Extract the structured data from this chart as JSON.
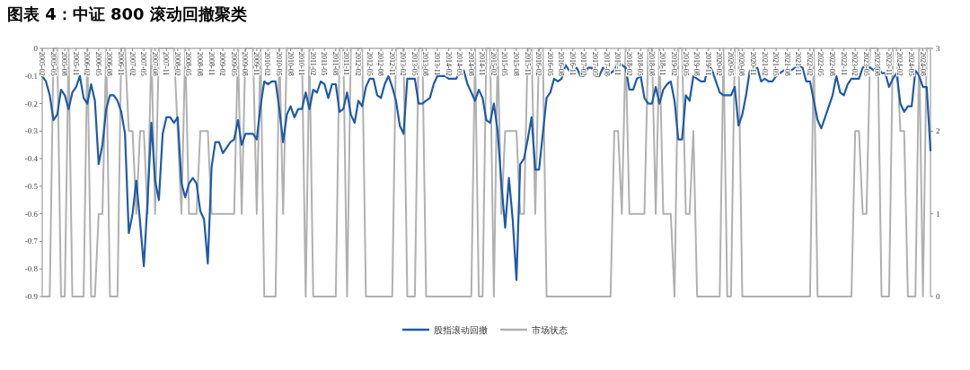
{
  "chart_data": {
    "type": "line",
    "title": "图表 4：中证 800 滚动回撤聚类",
    "categories": [
      "2005-02",
      null,
      null,
      "2005-05",
      null,
      null,
      "2005-08",
      null,
      null,
      "2005-11",
      null,
      null,
      "2006-02",
      null,
      null,
      "2006-05",
      null,
      null,
      "2006-08",
      null,
      null,
      "2006-11",
      null,
      null,
      "2007-02",
      null,
      null,
      "2007-05",
      null,
      null,
      "2007-08",
      null,
      null,
      "2007-11",
      null,
      null,
      "2008-02",
      null,
      null,
      "2008-05",
      null,
      null,
      "2008-08",
      null,
      null,
      "2008-11",
      null,
      null,
      "2009-02",
      null,
      null,
      "2009-05",
      null,
      null,
      "2009-08",
      null,
      null,
      "2009-11",
      null,
      null,
      "2010-02",
      null,
      null,
      "2010-05",
      null,
      null,
      "2010-08",
      null,
      null,
      "2010-11",
      null,
      null,
      "2011-02",
      null,
      null,
      "2011-05",
      null,
      null,
      "2011-08",
      null,
      null,
      "2011-11",
      null,
      null,
      "2012-02",
      null,
      null,
      "2012-05",
      null,
      null,
      "2012-08",
      null,
      null,
      "2012-11",
      null,
      null,
      "2013-02",
      null,
      null,
      "2013-05",
      null,
      null,
      "2013-08",
      null,
      null,
      "2013-11",
      null,
      null,
      "2014-02",
      null,
      null,
      "2014-05",
      null,
      null,
      "2014-08",
      null,
      null,
      "2014-11",
      null,
      null,
      "2015-02",
      null,
      null,
      "2015-05",
      null,
      null,
      "2015-08",
      null,
      null,
      "2015-11",
      null,
      null,
      "2016-02",
      null,
      null,
      "2016-05",
      null,
      null,
      "2016-08",
      null,
      null,
      "2016-11",
      null,
      null,
      "2017-02",
      null,
      null,
      "2017-05",
      null,
      null,
      "2017-08",
      null,
      null,
      "2017-11",
      null,
      null,
      "2018-02",
      null,
      null,
      "2018-05",
      null,
      null,
      "2018-08",
      null,
      null,
      "2018-11",
      null,
      null,
      "2019-02",
      null,
      null,
      "2019-05",
      null,
      null,
      "2019-08",
      null,
      null,
      "2019-11",
      null,
      null,
      "2020-02",
      null,
      null,
      "2020-05",
      null,
      null,
      "2020-08",
      null,
      null,
      "2020-11",
      null,
      null,
      "2021-02",
      null,
      null,
      "2021-05",
      null,
      null,
      "2021-08",
      null,
      null,
      "2021-11",
      null,
      null,
      "2022-02",
      null,
      null,
      "2022-05",
      null,
      null,
      "2022-08",
      null,
      null,
      "2022-11",
      null,
      null,
      "2023-02",
      null,
      null,
      "2023-05",
      null,
      null,
      "2023-08",
      null,
      null,
      "2023-11",
      null,
      null,
      "2024-02",
      null,
      null,
      "2024-05",
      null,
      null,
      "2024-08",
      null,
      null
    ],
    "series": [
      {
        "name": "股指滚动回撤",
        "color": "#1f5aa6",
        "values": [
          -0.1,
          -0.12,
          -0.17,
          -0.26,
          -0.24,
          -0.15,
          -0.17,
          -0.22,
          -0.16,
          -0.14,
          -0.1,
          -0.18,
          -0.2,
          -0.13,
          -0.19,
          -0.42,
          -0.35,
          -0.22,
          -0.17,
          -0.17,
          -0.19,
          -0.23,
          -0.31,
          -0.67,
          -0.6,
          -0.48,
          -0.63,
          -0.79,
          -0.55,
          -0.27,
          -0.48,
          -0.55,
          -0.31,
          -0.25,
          -0.25,
          -0.27,
          -0.25,
          -0.49,
          -0.54,
          -0.49,
          -0.47,
          -0.49,
          -0.59,
          -0.62,
          -0.78,
          -0.43,
          -0.34,
          -0.34,
          -0.38,
          -0.36,
          -0.34,
          -0.33,
          -0.26,
          -0.35,
          -0.31,
          -0.31,
          -0.31,
          -0.33,
          -0.21,
          -0.12,
          -0.13,
          -0.12,
          -0.12,
          -0.22,
          -0.34,
          -0.24,
          -0.21,
          -0.25,
          -0.22,
          -0.22,
          -0.16,
          -0.22,
          -0.15,
          -0.16,
          -0.12,
          -0.13,
          -0.18,
          -0.13,
          -0.13,
          -0.23,
          -0.22,
          -0.16,
          -0.24,
          -0.27,
          -0.19,
          -0.21,
          -0.14,
          -0.11,
          -0.11,
          -0.17,
          -0.18,
          -0.13,
          -0.1,
          -0.14,
          -0.19,
          -0.28,
          -0.31,
          -0.11,
          -0.11,
          -0.11,
          -0.2,
          -0.2,
          -0.19,
          -0.18,
          -0.13,
          -0.1,
          -0.1,
          -0.1,
          -0.11,
          -0.11,
          -0.11,
          -0.08,
          -0.08,
          -0.13,
          -0.16,
          -0.19,
          -0.15,
          -0.18,
          -0.26,
          -0.27,
          -0.2,
          -0.3,
          -0.49,
          -0.65,
          -0.47,
          -0.62,
          -0.84,
          -0.42,
          -0.4,
          -0.33,
          -0.25,
          -0.44,
          -0.44,
          -0.31,
          -0.18,
          -0.16,
          -0.11,
          -0.12,
          -0.11,
          -0.06,
          -0.08,
          -0.09,
          -0.07,
          -0.1,
          -0.1,
          -0.07,
          -0.07,
          -0.1,
          -0.1,
          -0.07,
          -0.1,
          -0.09,
          -0.08,
          -0.05,
          -0.06,
          -0.07,
          -0.15,
          -0.15,
          -0.11,
          -0.1,
          -0.18,
          -0.2,
          -0.2,
          -0.14,
          -0.2,
          -0.15,
          -0.13,
          -0.12,
          -0.19,
          -0.33,
          -0.33,
          -0.17,
          -0.19,
          -0.1,
          -0.11,
          -0.12,
          -0.12,
          -0.06,
          -0.08,
          -0.12,
          -0.16,
          -0.17,
          -0.17,
          -0.17,
          -0.14,
          -0.28,
          -0.24,
          -0.17,
          -0.08,
          -0.08,
          -0.07,
          -0.12,
          -0.11,
          -0.12,
          -0.12,
          -0.1,
          -0.09,
          -0.08,
          -0.08,
          -0.08,
          -0.07,
          -0.06,
          -0.07,
          -0.12,
          -0.12,
          -0.19,
          -0.26,
          -0.29,
          -0.25,
          -0.21,
          -0.17,
          -0.1,
          -0.16,
          -0.17,
          -0.13,
          -0.11,
          -0.11,
          -0.11,
          -0.07,
          -0.06,
          -0.07,
          -0.08,
          -0.06,
          -0.09,
          -0.09,
          -0.14,
          -0.11,
          -0.09,
          -0.2,
          -0.23,
          -0.21,
          -0.21,
          -0.08,
          -0.1,
          -0.14,
          -0.14,
          -0.37
        ]
      },
      {
        "name": "市场状态",
        "color": "#b0b0b0",
        "axis": "y2",
        "values": [
          0,
          0,
          0,
          3,
          3,
          0,
          0,
          3,
          0,
          0,
          0,
          0,
          3,
          0,
          0,
          1,
          1,
          3,
          0,
          0,
          0,
          3,
          3,
          2,
          2,
          1,
          2,
          2,
          1,
          3,
          1,
          3,
          3,
          3,
          3,
          3,
          2,
          1,
          3,
          1,
          1,
          1,
          2,
          2,
          2,
          1,
          1,
          1,
          1,
          1,
          1,
          1,
          3,
          1,
          3,
          3,
          3,
          1,
          3,
          0,
          0,
          0,
          0,
          3,
          1,
          3,
          3,
          3,
          3,
          3,
          0,
          3,
          0,
          0,
          0,
          0,
          0,
          0,
          0,
          3,
          3,
          0,
          3,
          3,
          3,
          3,
          0,
          0,
          0,
          0,
          0,
          0,
          0,
          0,
          3,
          3,
          3,
          0,
          0,
          0,
          3,
          3,
          0,
          0,
          0,
          0,
          0,
          0,
          0,
          0,
          0,
          0,
          0,
          0,
          0,
          3,
          0,
          0,
          3,
          3,
          0,
          3,
          1,
          2,
          2,
          2,
          2,
          1,
          1,
          3,
          3,
          1,
          3,
          3,
          0,
          0,
          0,
          0,
          0,
          0,
          0,
          0,
          0,
          0,
          0,
          0,
          0,
          0,
          0,
          0,
          0,
          0,
          2,
          2,
          1,
          3,
          1,
          1,
          1,
          1,
          1,
          3,
          3,
          1,
          3,
          1,
          1,
          1,
          0,
          3,
          3,
          1,
          1,
          2,
          0,
          0,
          0,
          0,
          0,
          0,
          0,
          3,
          0,
          0,
          3,
          3,
          0,
          0,
          0,
          0,
          0,
          0,
          0,
          0,
          0,
          0,
          0,
          0,
          0,
          0,
          0,
          0,
          0,
          0,
          0,
          3,
          0,
          0,
          0,
          0,
          0,
          0,
          0,
          0,
          0,
          0,
          2,
          2,
          1,
          1,
          3,
          3,
          3,
          0,
          0,
          0,
          3,
          3,
          2,
          2,
          0,
          0,
          0,
          3,
          0,
          3,
          3
        ]
      }
    ],
    "ylim": [
      -0.9,
      0
    ],
    "yticks": [
      0,
      -0.1,
      -0.2,
      -0.3,
      -0.4,
      -0.5,
      -0.6,
      -0.7,
      -0.8,
      -0.9
    ],
    "y2lim": [
      0,
      3
    ],
    "y2ticks": [
      0,
      1,
      2,
      3
    ],
    "legend": "bottom",
    "grid": false
  }
}
